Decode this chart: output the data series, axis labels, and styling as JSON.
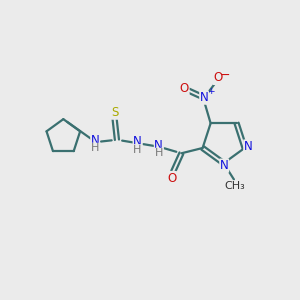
{
  "bg_color": "#ebebeb",
  "bond_color": "#3a7070",
  "bond_width": 1.6,
  "dbo": 0.07,
  "atom_colors": {
    "C": "#333333",
    "N": "#1010dd",
    "O": "#cc1111",
    "S": "#aaaa00",
    "H": "#777777"
  },
  "font_size": 8.5,
  "fig_size": [
    3.0,
    3.0
  ],
  "dpi": 100
}
